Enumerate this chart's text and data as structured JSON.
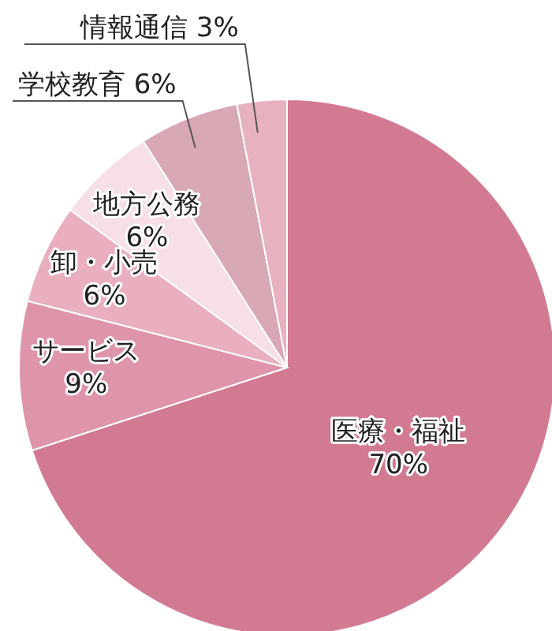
{
  "chart_data": {
    "type": "pie",
    "categories": [
      "医療・福祉",
      "サービス",
      "卸・小売",
      "地方公務",
      "学校教育",
      "情報通信"
    ],
    "values": [
      70,
      9,
      6,
      6,
      6,
      3
    ],
    "value_labels": [
      "70%",
      "9%",
      "6%",
      "6%",
      "6%",
      "3%"
    ],
    "colors": [
      "#d37a93",
      "#de95a9",
      "#e9afbe",
      "#f6dfe5",
      "#d8a8b5",
      "#e8b1c0"
    ],
    "legend": false
  }
}
